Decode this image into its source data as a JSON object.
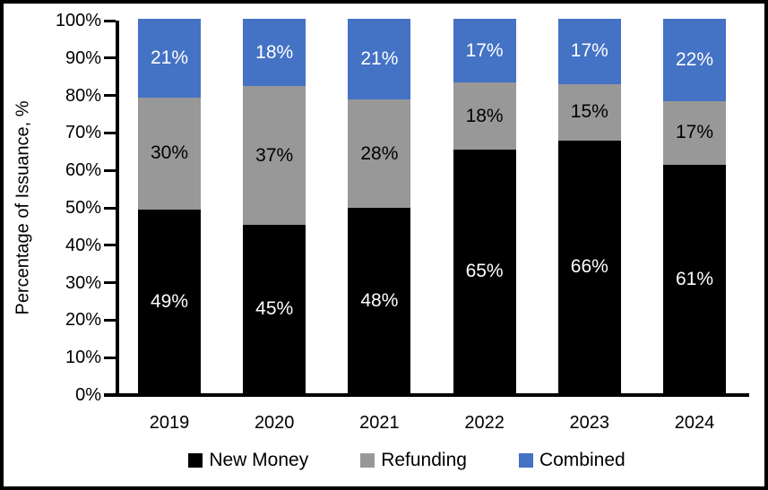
{
  "chart_data": {
    "type": "bar",
    "stacked": true,
    "title": "",
    "xlabel": "",
    "ylabel": "Percentage of Issuance, %",
    "categories": [
      "2019",
      "2020",
      "2021",
      "2022",
      "2023",
      "2024"
    ],
    "series": [
      {
        "name": "New Money",
        "color": "#000000",
        "label_color": "#ffffff",
        "values": [
          49,
          45,
          48,
          65,
          66,
          61
        ]
      },
      {
        "name": "Refunding",
        "color": "#989898",
        "label_color": "#000000",
        "values": [
          30,
          37,
          28,
          18,
          15,
          17
        ]
      },
      {
        "name": "Combined",
        "color": "#4472C4",
        "label_color": "#ffffff",
        "values": [
          21,
          18,
          21,
          17,
          17,
          22
        ]
      }
    ],
    "data_label_suffix": "%",
    "ylim": [
      0,
      100
    ],
    "ytick_labels": [
      "0%",
      "10%",
      "20%",
      "30%",
      "40%",
      "50%",
      "60%",
      "70%",
      "80%",
      "90%",
      "100%"
    ],
    "grid": false,
    "legend_position": "bottom",
    "axis_color": "#000000",
    "background_color": "#ffffff"
  }
}
